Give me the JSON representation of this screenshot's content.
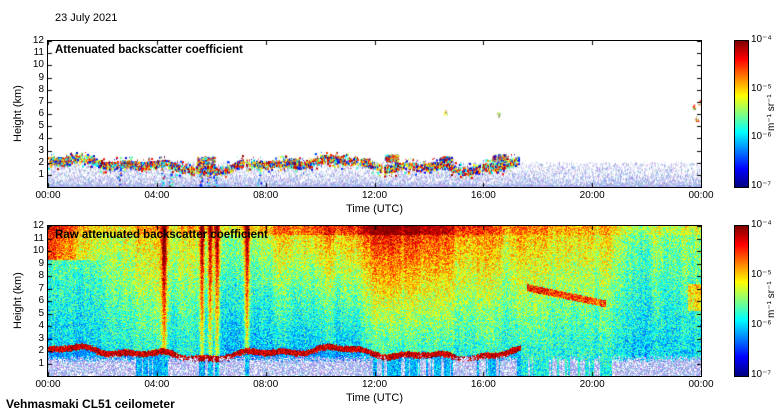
{
  "date_label": "23 July 2021",
  "footer_label": "Vehmasmaki CL51 ceilometer",
  "panels": [
    {
      "title": "Attenuated backscatter coefficient",
      "xlabel": "Time (UTC)",
      "ylabel": "Height (km)",
      "xticks": [
        "00:00",
        "04:00",
        "08:00",
        "12:00",
        "16:00",
        "20:00",
        "00:00"
      ],
      "yticks": [
        "12",
        "11",
        "10",
        "9",
        "8",
        "7",
        "6",
        "5",
        "4",
        "3",
        "2",
        "1"
      ]
    },
    {
      "title": "Raw attenuated backscatter coefficient",
      "xlabel": "Time (UTC)",
      "ylabel": "Height (km)",
      "xticks": [
        "00:00",
        "04:00",
        "08:00",
        "12:00",
        "16:00",
        "20:00",
        "00:00"
      ],
      "yticks": [
        "12",
        "11",
        "10",
        "9",
        "8",
        "7",
        "6",
        "5",
        "4",
        "3",
        "2",
        "1"
      ]
    }
  ],
  "colorbar": {
    "ticks": [
      "10⁻⁴",
      "10⁻⁵",
      "10⁻⁶",
      "10⁻⁷"
    ],
    "unit": "m⁻¹ sr⁻¹",
    "colors_top_to_bottom": [
      "#800000",
      "#ff0000",
      "#ff8000",
      "#ffff00",
      "#80ff80",
      "#00ffff",
      "#0080ff",
      "#0000ff",
      "#000080"
    ]
  },
  "chart_data": [
    {
      "type": "heatmap",
      "title": "Attenuated backscatter coefficient",
      "xlabel": "Time (UTC)",
      "ylabel": "Height (km)",
      "x_range_hours": [
        0,
        24
      ],
      "y_range_km": [
        0,
        12
      ],
      "value_range": [
        "1e-7",
        "1e-4"
      ],
      "value_units": "m⁻¹ sr⁻¹",
      "scale": "log",
      "colormap": "jet",
      "features": {
        "aerosol_layer_time_span_utc": [
          0,
          17.3
        ],
        "aerosol_layer_height_km": [
          1.3,
          2.6
        ],
        "surface_noise_top_km": 2.0,
        "virga_streak_times_utc": [
          2.6,
          4.2,
          4.5,
          5.6,
          5.9,
          6.15,
          7.75
        ],
        "dense_cloud_patches": [
          {
            "t": 0.5,
            "h": 2.1,
            "r": 0.6
          },
          {
            "t": 3.0,
            "h": 1.9,
            "r": 0.5
          },
          {
            "t": 5.8,
            "h": 2.2,
            "r": 0.7
          },
          {
            "t": 9.0,
            "h": 2.1,
            "r": 0.5
          },
          {
            "t": 10.6,
            "h": 2.3,
            "r": 0.55
          },
          {
            "t": 12.6,
            "h": 2.4,
            "r": 0.55
          },
          {
            "t": 14.6,
            "h": 2.3,
            "r": 0.5
          },
          {
            "t": 16.6,
            "h": 2.4,
            "r": 0.6
          }
        ],
        "high_cloud_specks": [
          {
            "t": 14.6,
            "h": 6.15
          },
          {
            "t": 16.55,
            "h": 6.0
          },
          {
            "t": 23.75,
            "h": 6.6
          },
          {
            "t": 23.85,
            "h": 5.6
          },
          {
            "t": 23.95,
            "h": 7.0
          }
        ]
      }
    },
    {
      "type": "heatmap",
      "title": "Raw attenuated backscatter coefficient",
      "xlabel": "Time (UTC)",
      "ylabel": "Height (km)",
      "x_range_hours": [
        0,
        24
      ],
      "y_range_km": [
        0,
        12
      ],
      "value_range": [
        "1e-7",
        "1e-4"
      ],
      "value_units": "m⁻¹ sr⁻¹",
      "scale": "log",
      "colormap": "jet",
      "features": {
        "aerosol_layer_time_span_utc": [
          0,
          17.35
        ],
        "bright_column_times_utc": [
          4.25,
          5.65,
          5.95,
          6.2,
          7.3
        ],
        "daytime_noise_peak_utc": 11.3,
        "elevated_streak": {
          "t_start": 17.6,
          "t_end": 20.5,
          "h_start": 7.1,
          "h_end": 5.8
        },
        "right_edge_cloud": {
          "t": 23.8,
          "h_range": [
            5.2,
            7.4
          ]
        }
      }
    }
  ]
}
